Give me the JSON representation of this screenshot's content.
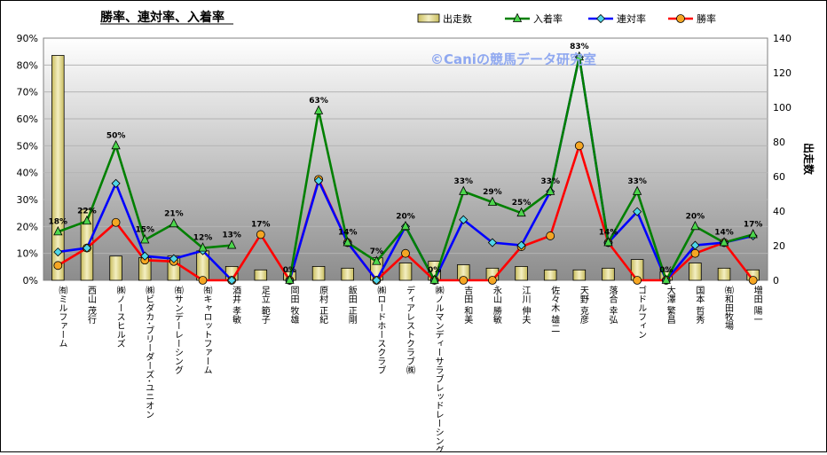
{
  "chart_data": {
    "type": "bar+line",
    "title": "勝率、連対率、入着率",
    "watermark": "©Caniの競馬データ研究室",
    "y2label": "出走数",
    "ylim": [
      0,
      90
    ],
    "y_ticks": [
      "0%",
      "10%",
      "20%",
      "30%",
      "40%",
      "50%",
      "60%",
      "70%",
      "80%",
      "90%"
    ],
    "y2lim": [
      0,
      140
    ],
    "y2_ticks": [
      "0",
      "20",
      "40",
      "60",
      "80",
      "100",
      "120",
      "140"
    ],
    "grid": true,
    "legend_position": "top",
    "categories": [
      "㈲ミルファーム",
      "西山 茂行",
      "㈱ノースヒルズ",
      "㈱ビダカ･ブリーダーズ･ユニオン",
      "㈲サンデーレーシング",
      "㈲キャロットファーム",
      "酒井 孝敏",
      "足立 範子",
      "岡田 牧雄",
      "原村 正紀",
      "飯田 正剛",
      "㈱ロードホースクラブ",
      "ディアレストクラブ㈱",
      "㈱ノルマンディーサラブレッドレーシング",
      "吉田 和美",
      "永山 勝敏",
      "江川 伸夫",
      "佐々木 雄二",
      "天野 克彦",
      "落合 幸弘",
      "ゴドルフィン",
      "大澤 繁昌",
      "国本 哲秀",
      "㈲和田牧場",
      "増田 陽一"
    ],
    "series": [
      {
        "name": "出走数",
        "type": "bar",
        "axis": "right",
        "color": "#e8e0a0",
        "values": [
          130,
          41,
          14,
          13,
          14,
          17,
          8,
          6,
          5,
          8,
          7,
          13,
          10,
          11,
          9,
          7,
          8,
          6,
          6,
          7,
          12,
          5,
          10,
          7,
          6
        ]
      },
      {
        "name": "入着率",
        "type": "line",
        "axis": "left",
        "color": "#008000",
        "marker": "triangle",
        "values": [
          18,
          22,
          50,
          15,
          21,
          12,
          13,
          null,
          0,
          63,
          14,
          7,
          20,
          0,
          33,
          29,
          25,
          33,
          83,
          14,
          33,
          0,
          20,
          14,
          17
        ]
      },
      {
        "name": "連対率",
        "type": "line",
        "axis": "left",
        "color": "#0000ff",
        "marker": "diamond",
        "values": [
          10.5,
          12,
          36,
          9,
          8,
          11,
          0,
          null,
          0,
          37,
          14,
          0,
          20,
          0,
          22.5,
          14,
          13,
          33,
          83,
          14,
          25.5,
          0,
          13,
          14,
          16.5
        ]
      },
      {
        "name": "勝率",
        "type": "line",
        "axis": "left",
        "color": "#ff0000",
        "marker": "circle",
        "values": [
          5.5,
          12,
          21.5,
          7.5,
          7,
          0,
          0,
          17,
          0,
          37.5,
          14,
          0,
          10,
          0,
          0,
          0,
          12.5,
          16.5,
          50,
          14,
          0,
          0,
          10,
          14,
          0
        ]
      }
    ],
    "data_labels": [
      "18%",
      "22%",
      "50%",
      "15%",
      "21%",
      "12%",
      "13%",
      "17%",
      "0%",
      "63%",
      "14%",
      "7%",
      "20%",
      "0%",
      "33%",
      "29%",
      "25%",
      "33%",
      "83%",
      "14%",
      "33%",
      "0%",
      "20%",
      "14%",
      "17%"
    ]
  }
}
